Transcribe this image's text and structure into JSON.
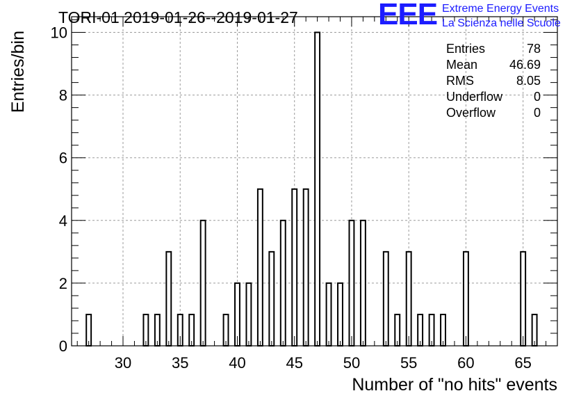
{
  "chart_data": {
    "type": "bar",
    "title": "TORI-01 2019-01-26--2019-01-27",
    "xlabel": "Number of \"no hits\" events",
    "ylabel": "Entries/bin",
    "xlim": [
      25.5,
      68.0
    ],
    "ylim": [
      0,
      10.5
    ],
    "bin_width": 1,
    "x_ticks": [
      30,
      35,
      40,
      45,
      50,
      55,
      60,
      65
    ],
    "y_ticks": [
      0,
      2,
      4,
      6,
      8,
      10
    ],
    "grid": true,
    "bins": [
      {
        "x": 27,
        "value": 1
      },
      {
        "x": 32,
        "value": 1
      },
      {
        "x": 33,
        "value": 1
      },
      {
        "x": 34,
        "value": 3
      },
      {
        "x": 35,
        "value": 1
      },
      {
        "x": 36,
        "value": 1
      },
      {
        "x": 37,
        "value": 4
      },
      {
        "x": 39,
        "value": 1
      },
      {
        "x": 40,
        "value": 2
      },
      {
        "x": 41,
        "value": 2
      },
      {
        "x": 42,
        "value": 5
      },
      {
        "x": 43,
        "value": 3
      },
      {
        "x": 44,
        "value": 4
      },
      {
        "x": 45,
        "value": 5
      },
      {
        "x": 46,
        "value": 5
      },
      {
        "x": 47,
        "value": 10
      },
      {
        "x": 48,
        "value": 2
      },
      {
        "x": 49,
        "value": 2
      },
      {
        "x": 50,
        "value": 4
      },
      {
        "x": 51,
        "value": 4
      },
      {
        "x": 53,
        "value": 3
      },
      {
        "x": 54,
        "value": 1
      },
      {
        "x": 55,
        "value": 3
      },
      {
        "x": 56,
        "value": 1
      },
      {
        "x": 57,
        "value": 1
      },
      {
        "x": 58,
        "value": 1
      },
      {
        "x": 60,
        "value": 3
      },
      {
        "x": 65,
        "value": 3
      },
      {
        "x": 66,
        "value": 1
      }
    ],
    "stats": [
      {
        "label": "Entries",
        "value": "78"
      },
      {
        "label": "Mean",
        "value": "46.69"
      },
      {
        "label": "RMS",
        "value": "8.05"
      },
      {
        "label": "Underflow",
        "value": "0"
      },
      {
        "label": "Overflow",
        "value": "0"
      }
    ],
    "colors": {
      "bars": "#000000",
      "grid": "#9a9a9a",
      "logo": "#1c1cff"
    }
  },
  "logo": {
    "letters": "EEE",
    "line1": "Extreme Energy Events",
    "line2": "La Scienza nelle Scuole"
  }
}
